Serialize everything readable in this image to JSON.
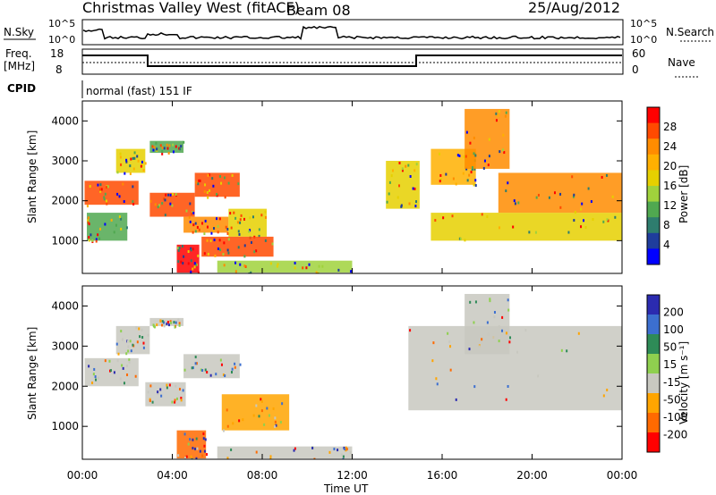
{
  "header": {
    "station": "Christmas Valley West (fitACF)",
    "beam": "Beam 08",
    "date": "25/Aug/2012"
  },
  "strips": {
    "nsky_label": "N.Sky",
    "nsky_ticks": [
      "10^5",
      "10^0"
    ],
    "nsearch_label": "N.Search",
    "freq_label": "Freq.",
    "freq_unit": "[MHz]",
    "freq_ticks": [
      "18",
      "8"
    ],
    "nave_label": "Nave",
    "nave_ticks": [
      "60",
      "0"
    ],
    "cpid_label": "CPID",
    "cpid_text": "normal (fast) 151 IF"
  },
  "colorbars": {
    "power": {
      "label": "Power [dB]",
      "ticks": [
        "28",
        "24",
        "20",
        "16",
        "12",
        "8",
        "4"
      ],
      "colors": [
        "#ff0000",
        "#ff4a00",
        "#ff8c00",
        "#ffb000",
        "#e6d000",
        "#a0d23c",
        "#50a850",
        "#2e7d6e",
        "#1f3d9c",
        "#0000ff"
      ]
    },
    "velocity": {
      "label": "Velocity [m s⁻¹]",
      "ticks": [
        "200",
        "100",
        "50",
        "15",
        "-15",
        "-50",
        "-100",
        "-200"
      ],
      "colors": [
        "#2b2bb0",
        "#3c6fd0",
        "#2e8b57",
        "#8fd04f",
        "#c8c8c0",
        "#ffa500",
        "#ff6a00",
        "#ff0000"
      ]
    }
  },
  "axes": {
    "ylabel": "Slant Range [km]",
    "xlabel": "Time UT",
    "x_ticks": [
      "00:00",
      "04:00",
      "08:00",
      "12:00",
      "16:00",
      "20:00",
      "00:00"
    ],
    "y_ticks": [
      "1000",
      "2000",
      "3000",
      "4000"
    ]
  },
  "chart_data": {
    "type": "heatmap",
    "x": {
      "label": "Time UT",
      "range_hours": [
        0,
        24
      ]
    },
    "y": {
      "label": "Slant Range [km]",
      "range_km": [
        180,
        4500
      ]
    },
    "panels": [
      {
        "name": "Power",
        "unit": "dB",
        "scale": [
          0,
          30
        ],
        "regions": [
          {
            "t": [
              0.1,
              2.5
            ],
            "r": [
              1900,
              2500
            ],
            "level": 28
          },
          {
            "t": [
              0.2,
              2.0
            ],
            "r": [
              1000,
              1700
            ],
            "level": 10
          },
          {
            "t": [
              1.5,
              2.8
            ],
            "r": [
              2700,
              3300
            ],
            "level": 16
          },
          {
            "t": [
              3.0,
              4.5
            ],
            "r": [
              3200,
              3500
            ],
            "level": 10
          },
          {
            "t": [
              3.0,
              5.0
            ],
            "r": [
              1600,
              2200
            ],
            "level": 26
          },
          {
            "t": [
              5.0,
              7.0
            ],
            "r": [
              2100,
              2700
            ],
            "level": 28
          },
          {
            "t": [
              4.5,
              6.5
            ],
            "r": [
              1200,
              1600
            ],
            "level": 22
          },
          {
            "t": [
              6.5,
              8.2
            ],
            "r": [
              1100,
              1800
            ],
            "level": 18
          },
          {
            "t": [
              4.2,
              5.2
            ],
            "r": [
              200,
              900
            ],
            "level": 30
          },
          {
            "t": [
              5.3,
              8.5
            ],
            "r": [
              600,
              1100
            ],
            "level": 28
          },
          {
            "t": [
              6.0,
              12.0
            ],
            "r": [
              200,
              500
            ],
            "level": 12
          },
          {
            "t": [
              13.5,
              15.0
            ],
            "r": [
              1800,
              3000
            ],
            "level": 18
          },
          {
            "t": [
              15.5,
              17.5
            ],
            "r": [
              2400,
              3300
            ],
            "level": 20
          },
          {
            "t": [
              17.0,
              19.0
            ],
            "r": [
              2800,
              4300
            ],
            "level": 22
          },
          {
            "t": [
              15.5,
              24.0
            ],
            "r": [
              1000,
              1700
            ],
            "level": 18
          },
          {
            "t": [
              18.5,
              24.0
            ],
            "r": [
              1700,
              2700
            ],
            "level": 24
          }
        ]
      },
      {
        "name": "Velocity",
        "unit": "m s^-1",
        "scale": [
          -250,
          250
        ],
        "regions": [
          {
            "t": [
              0.1,
              2.5
            ],
            "r": [
              2000,
              2700
            ],
            "level": 0
          },
          {
            "t": [
              1.5,
              3.0
            ],
            "r": [
              2800,
              3500
            ],
            "level": 0
          },
          {
            "t": [
              3.0,
              4.5
            ],
            "r": [
              3500,
              3700
            ],
            "level": -40
          },
          {
            "t": [
              2.8,
              4.6
            ],
            "r": [
              1500,
              2100
            ],
            "level": -40
          },
          {
            "t": [
              4.5,
              7.0
            ],
            "r": [
              2200,
              2800
            ],
            "level": 0
          },
          {
            "t": [
              6.2,
              9.2
            ],
            "r": [
              900,
              1800
            ],
            "level": -80
          },
          {
            "t": [
              4.2,
              5.5
            ],
            "r": [
              200,
              900
            ],
            "level": -200
          },
          {
            "t": [
              6.0,
              12.0
            ],
            "r": [
              200,
              500
            ],
            "level": -40
          },
          {
            "t": [
              14.5,
              24.0
            ],
            "r": [
              1400,
              3500
            ],
            "level": 0
          },
          {
            "t": [
              17.0,
              19.0
            ],
            "r": [
              2800,
              4300
            ],
            "level": 0
          }
        ]
      }
    ]
  }
}
